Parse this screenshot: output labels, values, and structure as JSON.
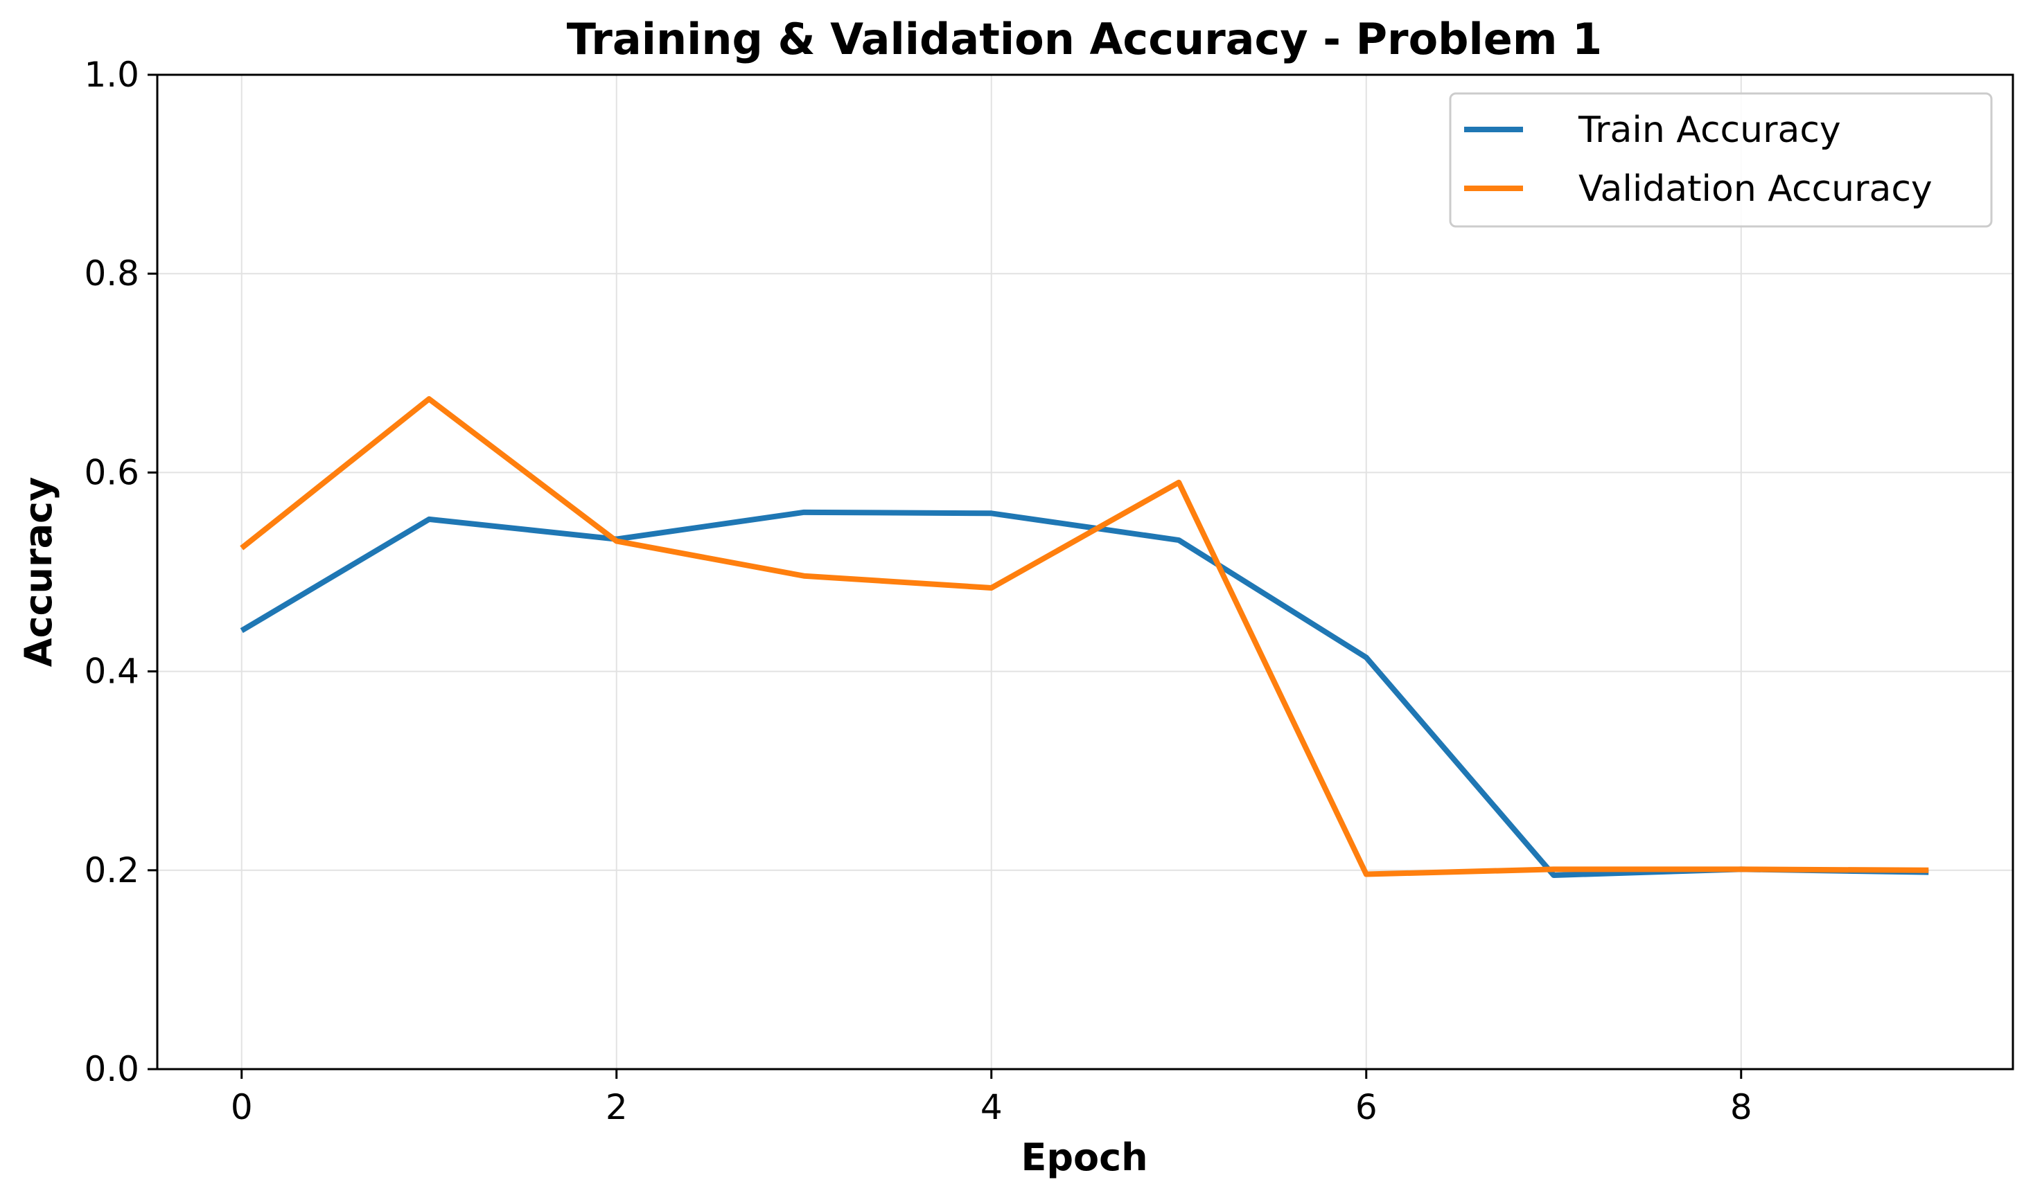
{
  "chart_data": {
    "type": "line",
    "title": "Training & Validation Accuracy - Problem 1",
    "xlabel": "Epoch",
    "ylabel": "Accuracy",
    "x": [
      0,
      1,
      2,
      3,
      4,
      5,
      6,
      7,
      8,
      9
    ],
    "xlim": [
      -0.45,
      9.45
    ],
    "ylim": [
      0.0,
      1.0
    ],
    "xticks": [
      0,
      2,
      4,
      6,
      8
    ],
    "yticks": [
      0.0,
      0.2,
      0.4,
      0.6,
      0.8,
      1.0
    ],
    "xtick_labels": [
      "0",
      "2",
      "4",
      "6",
      "8"
    ],
    "ytick_labels": [
      "0.0",
      "0.2",
      "0.4",
      "0.6",
      "0.8",
      "1.0"
    ],
    "grid": true,
    "legend_position": "top-right",
    "series": [
      {
        "name": "Train Accuracy",
        "color": "#1f77b4",
        "values": [
          0.441,
          0.553,
          0.533,
          0.56,
          0.559,
          0.532,
          0.414,
          0.195,
          0.201,
          0.198
        ]
      },
      {
        "name": "Validation Accuracy",
        "color": "#ff7f0e",
        "values": [
          0.524,
          0.674,
          0.531,
          0.496,
          0.484,
          0.59,
          0.196,
          0.201,
          0.201,
          0.2
        ]
      }
    ]
  }
}
